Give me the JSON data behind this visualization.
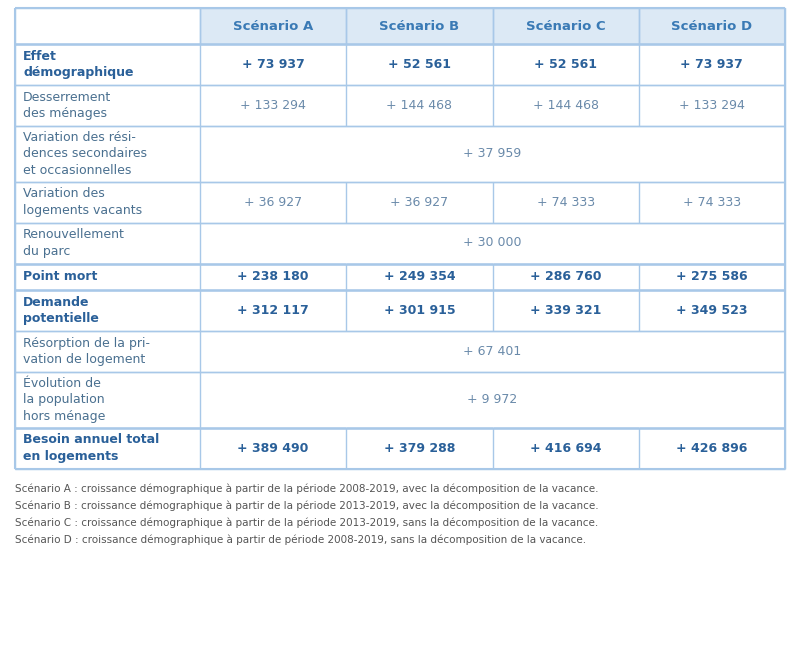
{
  "col_headers": [
    "Scénario A",
    "Scénario B",
    "Scénario C",
    "Scénario D"
  ],
  "rows": [
    {
      "label": "Effet\ndémographique",
      "bold": true,
      "values": [
        "+ 73 937",
        "+ 52 561",
        "+ 52 561",
        "+ 73 937"
      ],
      "span": false,
      "n_lines": 2
    },
    {
      "label": "Desserrement\ndes ménages",
      "bold": false,
      "values": [
        "+ 133 294",
        "+ 144 468",
        "+ 144 468",
        "+ 133 294"
      ],
      "span": false,
      "n_lines": 2
    },
    {
      "label": "Variation des rési-\ndences secondaires\net occasionnelles",
      "bold": false,
      "values": [
        "+ 37 959"
      ],
      "span": true,
      "n_lines": 3
    },
    {
      "label": "Variation des\nlogements vacants",
      "bold": false,
      "values": [
        "+ 36 927",
        "+ 36 927",
        "+ 74 333",
        "+ 74 333"
      ],
      "span": false,
      "n_lines": 2
    },
    {
      "label": "Renouvellement\ndu parc",
      "bold": false,
      "values": [
        "+ 30 000"
      ],
      "span": true,
      "n_lines": 2
    },
    {
      "label": "Point mort",
      "bold": true,
      "values": [
        "+ 238 180",
        "+ 249 354",
        "+ 286 760",
        "+ 275 586"
      ],
      "span": false,
      "n_lines": 1
    },
    {
      "label": "Demande\npotentielle",
      "bold": true,
      "values": [
        "+ 312 117",
        "+ 301 915",
        "+ 339 321",
        "+ 349 523"
      ],
      "span": false,
      "n_lines": 2
    },
    {
      "label": "Résorption de la pri-\nvation de logement",
      "bold": false,
      "values": [
        "+ 67 401"
      ],
      "span": true,
      "n_lines": 2
    },
    {
      "label": "Évolution de\nla population\nhors ménage",
      "bold": false,
      "values": [
        "+ 9 972"
      ],
      "span": true,
      "n_lines": 3
    },
    {
      "label": "Besoin annuel total\nen logements",
      "bold": true,
      "values": [
        "+ 389 490",
        "+ 379 288",
        "+ 416 694",
        "+ 426 896"
      ],
      "span": false,
      "n_lines": 2
    }
  ],
  "footer_lines": [
    "Scénario A : croissance démographique à partir de la période 2008-2019, avec la décomposition de la vacance.",
    "Scénario B : croissance démographique à partir de la période 2013-2019, avec la décomposition de la vacance.",
    "Scénario C : croissance démographique à partir de la période 2013-2019, sans la décomposition de la vacance.",
    "Scénario D : croissance démographique à partir de période 2008-2019, sans la décomposition de la vacance."
  ],
  "header_bg": "#dce9f5",
  "header_text_color": "#3a7ab5",
  "bold_label_color": "#2a6099",
  "normal_label_color": "#4a7090",
  "bold_value_color": "#2a6099",
  "normal_value_color": "#6a8aaa",
  "border_color": "#a8c8e8",
  "bg_color": "#ffffff",
  "footer_color": "#555555"
}
